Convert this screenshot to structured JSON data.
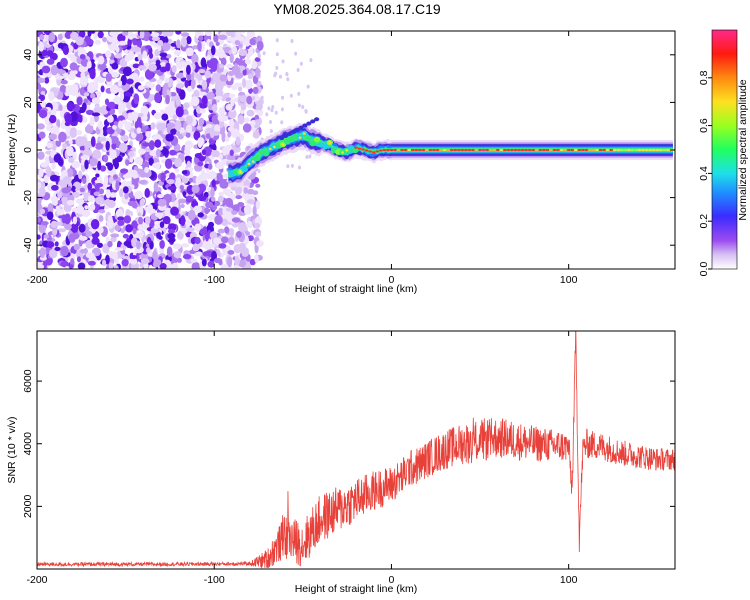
{
  "title": "YM08.2025.364.08.17.C19",
  "chart_data": [
    {
      "type": "heatmap",
      "name": "spectrogram",
      "xlabel": "Height of straight line (km)",
      "ylabel": "Frequency (Hz)",
      "xlim": [
        -200,
        160
      ],
      "ylim": [
        -50,
        50
      ],
      "xticks": [
        -200,
        -100,
        0,
        100
      ],
      "xtick_labels": [
        "-200",
        "-100",
        "0",
        "100"
      ],
      "yticks": [
        -40,
        -20,
        0,
        20,
        40
      ],
      "ytick_labels": [
        "-40",
        "-20",
        "0",
        "20",
        "40"
      ],
      "colorbar": {
        "label": "Normalized spectral amplitude",
        "range": [
          0,
          1
        ],
        "ticks": [
          0.0,
          0.2,
          0.4,
          0.6,
          0.8
        ],
        "tick_labels": [
          "0.0",
          "0.2",
          "0.4",
          "0.6",
          "0.8"
        ],
        "colormap": "rainbow (white-purple-blue-cyan-green-yellow-red-magenta)"
      },
      "ridge": {
        "description": "Dominant frequency ridge",
        "points": [
          [
            -90,
            -10
          ],
          [
            -85,
            -9
          ],
          [
            -80,
            -5
          ],
          [
            -75,
            -2
          ],
          [
            -70,
            0
          ],
          [
            -65,
            2
          ],
          [
            -60,
            4
          ],
          [
            -55,
            5
          ],
          [
            -50,
            6
          ],
          [
            -45,
            4
          ],
          [
            -40,
            3
          ],
          [
            -35,
            2
          ],
          [
            -30,
            0
          ],
          [
            -25,
            -1
          ],
          [
            -20,
            1
          ],
          [
            -15,
            0
          ],
          [
            -10,
            -1
          ],
          [
            -5,
            0
          ],
          [
            0,
            0
          ],
          [
            20,
            0
          ],
          [
            40,
            0
          ],
          [
            55,
            0
          ],
          [
            60,
            0
          ],
          [
            80,
            0
          ],
          [
            95,
            0
          ],
          [
            100,
            0
          ],
          [
            105,
            0
          ],
          [
            110,
            0
          ],
          [
            130,
            0
          ],
          [
            160,
            0
          ]
        ]
      },
      "noise_region": [
        -200,
        -80
      ]
    },
    {
      "type": "line",
      "name": "snr",
      "xlabel": "Height of straight line (km)",
      "ylabel": "SNR (10 * v/v)",
      "xlim": [
        -200,
        160
      ],
      "ylim": [
        0,
        7600
      ],
      "xticks": [
        -200,
        -100,
        0,
        100
      ],
      "xtick_labels": [
        "-200",
        "-100",
        "0",
        "100"
      ],
      "yticks": [
        2000,
        4000,
        6000
      ],
      "ytick_labels": [
        "2000",
        "4000",
        "6000"
      ],
      "color": "#e8413a",
      "trend": {
        "x": [
          -200,
          -150,
          -100,
          -80,
          -70,
          -65,
          -60,
          -55,
          -50,
          -45,
          -40,
          -30,
          -20,
          -10,
          0,
          5,
          10,
          15,
          20,
          30,
          40,
          50,
          60,
          70,
          80,
          90,
          100,
          102,
          104,
          106,
          108,
          110,
          120,
          130,
          140,
          150,
          160
        ],
        "y": [
          150,
          150,
          160,
          170,
          300,
          700,
          1000,
          900,
          800,
          1200,
          1600,
          1900,
          2200,
          2500,
          2700,
          2900,
          3200,
          3300,
          3500,
          3800,
          4000,
          4100,
          4200,
          4100,
          4000,
          3950,
          3900,
          2500,
          7500,
          1000,
          3800,
          4000,
          3900,
          3700,
          3600,
          3500,
          3500
        ]
      },
      "noise_amplitude": [
        [
          -200,
          60
        ],
        [
          -80,
          60
        ],
        [
          -75,
          200
        ],
        [
          -60,
          700
        ],
        [
          -40,
          800
        ],
        [
          -20,
          700
        ],
        [
          0,
          600
        ],
        [
          20,
          600
        ],
        [
          50,
          700
        ],
        [
          100,
          500
        ],
        [
          160,
          350
        ]
      ]
    }
  ]
}
